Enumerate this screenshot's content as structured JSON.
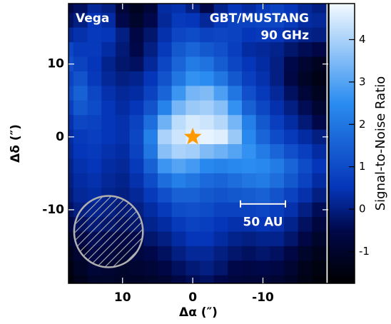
{
  "chart_data": {
    "type": "heatmap",
    "annotations": {
      "source": "Vega",
      "instrument": "GBT/MUSTANG",
      "frequency": "90 GHz"
    },
    "xlabel": "Δα (″)",
    "ylabel": "Δδ (″)",
    "colorbar_label": "Signal-to-Noise Ratio",
    "xlim": [
      17.7,
      -19.3
    ],
    "ylim": [
      -20.1,
      18.3
    ],
    "xticks": [
      10,
      0,
      -10
    ],
    "yticks": [
      10,
      0,
      -10
    ],
    "zlim": [
      -1.75,
      4.85
    ],
    "zticks": [
      -1,
      0,
      1,
      2,
      3,
      4
    ],
    "colorscale": [
      [
        -1.75,
        "#000000"
      ],
      [
        -0.5,
        "#00084a"
      ],
      [
        0.5,
        "#0535b8"
      ],
      [
        2.5,
        "#2a8cf0"
      ],
      [
        4.85,
        "#f4faff"
      ]
    ],
    "x": [
      18,
      16,
      14,
      12,
      10,
      8,
      6,
      4,
      2,
      0,
      -2,
      -4,
      -6,
      -8,
      -10,
      -12,
      -14,
      -16,
      -18
    ],
    "y": [
      18,
      16,
      14,
      12,
      10,
      8,
      6,
      4,
      2,
      0,
      -2,
      -4,
      -6,
      -8,
      -10,
      -12,
      -14,
      -16,
      -18,
      -20
    ],
    "z": [
      [
        -0.5,
        -0.3,
        0.2,
        0.0,
        -0.8,
        -1.2,
        -0.8,
        0.3,
        0.4,
        0.0,
        -0.5,
        0.1,
        0.5,
        0.3,
        0.6,
        0.8,
        0.5,
        0.2,
        0.0
      ],
      [
        -0.3,
        0.0,
        0.5,
        0.3,
        -0.5,
        -1.0,
        -0.5,
        0.2,
        0.6,
        0.5,
        0.2,
        0.6,
        0.8,
        0.8,
        0.9,
        0.9,
        0.6,
        0.3,
        0.2
      ],
      [
        0.2,
        0.4,
        0.6,
        0.5,
        0.0,
        -0.6,
        -0.2,
        0.4,
        0.9,
        1.0,
        0.8,
        0.9,
        0.8,
        0.5,
        0.6,
        0.5,
        0.3,
        0.1,
        0.0
      ],
      [
        0.9,
        0.6,
        0.6,
        0.3,
        -0.1,
        -0.5,
        0.0,
        0.6,
        1.3,
        1.6,
        1.3,
        1.1,
        0.7,
        0.3,
        0.2,
        0.1,
        -0.2,
        -0.4,
        -0.6
      ],
      [
        1.1,
        0.8,
        0.5,
        0.1,
        -0.2,
        -0.3,
        0.2,
        0.9,
        1.6,
        2.1,
        1.9,
        1.4,
        0.9,
        0.5,
        0.3,
        0.0,
        -0.5,
        -0.9,
        -1.2
      ],
      [
        0.8,
        1.2,
        0.6,
        0.2,
        0.0,
        0.1,
        0.5,
        1.2,
        2.0,
        2.6,
        2.5,
        2.0,
        1.3,
        0.7,
        0.4,
        0.0,
        -0.6,
        -1.1,
        -1.4
      ],
      [
        1.0,
        1.5,
        0.9,
        0.4,
        0.2,
        0.3,
        0.8,
        1.6,
        2.7,
        3.4,
        3.5,
        2.9,
        2.0,
        1.1,
        0.6,
        0.2,
        -0.3,
        -0.8,
        -1.2
      ],
      [
        0.7,
        1.3,
        1.0,
        0.5,
        0.3,
        0.5,
        1.2,
        2.3,
        3.4,
        3.8,
        3.9,
        3.6,
        2.6,
        1.5,
        0.9,
        0.4,
        0.0,
        -0.4,
        -0.9
      ],
      [
        0.4,
        0.9,
        0.8,
        0.5,
        0.4,
        0.8,
        1.8,
        3.3,
        4.2,
        4.5,
        4.4,
        4.1,
        3.4,
        2.2,
        1.3,
        0.7,
        0.3,
        -0.1,
        -0.5
      ],
      [
        0.3,
        0.6,
        0.7,
        0.5,
        0.4,
        0.9,
        2.2,
        4.0,
        4.4,
        4.6,
        4.7,
        4.6,
        3.8,
        2.4,
        1.6,
        1.0,
        0.6,
        0.3,
        0.0
      ],
      [
        0.2,
        0.5,
        0.6,
        0.4,
        0.3,
        0.8,
        2.0,
        3.6,
        4.0,
        3.9,
        3.5,
        3.3,
        3.0,
        2.6,
        2.1,
        1.6,
        1.1,
        0.7,
        0.3
      ],
      [
        0.1,
        0.4,
        0.5,
        0.3,
        0.2,
        0.6,
        1.5,
        2.7,
        3.0,
        2.8,
        2.4,
        2.3,
        2.4,
        2.5,
        2.4,
        2.1,
        1.6,
        1.0,
        0.5
      ],
      [
        0.0,
        0.3,
        0.4,
        0.2,
        0.1,
        0.4,
        1.0,
        1.8,
        2.2,
        2.0,
        1.7,
        1.6,
        1.8,
        2.0,
        2.1,
        1.8,
        1.3,
        0.8,
        0.3
      ],
      [
        -0.1,
        0.2,
        0.3,
        0.1,
        0.0,
        0.2,
        0.6,
        1.1,
        1.5,
        1.5,
        1.3,
        1.2,
        1.3,
        1.4,
        1.5,
        1.2,
        0.8,
        0.4,
        0.0
      ],
      [
        -0.3,
        0.0,
        0.1,
        0.0,
        -0.1,
        0.0,
        0.3,
        0.6,
        1.0,
        1.1,
        1.0,
        0.8,
        0.8,
        0.8,
        0.9,
        0.7,
        0.4,
        0.0,
        -0.4
      ],
      [
        -0.6,
        -0.3,
        -0.1,
        -0.2,
        -0.3,
        -0.2,
        0.1,
        0.3,
        0.6,
        0.8,
        0.7,
        0.5,
        0.4,
        0.4,
        0.5,
        0.4,
        0.1,
        -0.3,
        -0.7
      ],
      [
        -1.0,
        -0.6,
        -0.4,
        -0.5,
        -0.6,
        -0.5,
        -0.2,
        0.0,
        0.3,
        0.5,
        0.5,
        0.3,
        0.1,
        0.0,
        0.1,
        0.1,
        -0.2,
        -0.6,
        -1.0
      ],
      [
        -1.3,
        -0.9,
        -0.6,
        -0.7,
        -0.8,
        -0.7,
        -0.5,
        -0.3,
        0.0,
        0.2,
        0.2,
        0.0,
        -0.2,
        -0.3,
        -0.2,
        -0.3,
        -0.6,
        -1.0,
        -1.3
      ],
      [
        -1.5,
        -1.1,
        -0.8,
        -0.9,
        -1.0,
        -0.9,
        -0.8,
        -0.6,
        -0.3,
        -0.1,
        0.0,
        -0.2,
        -0.5,
        -0.6,
        -0.5,
        -0.6,
        -0.9,
        -1.3,
        -1.5
      ],
      [
        -1.6,
        -1.3,
        -1.0,
        -1.0,
        -1.1,
        -1.1,
        -1.0,
        -0.9,
        -0.6,
        -0.4,
        -0.3,
        -0.5,
        -0.7,
        -0.8,
        -0.8,
        -0.9,
        -1.1,
        -1.4,
        -1.6
      ]
    ],
    "star": {
      "x": 0,
      "y": 0,
      "color": "#ff9900"
    },
    "beam": {
      "x": 12,
      "y": -13,
      "diameter": 9.8,
      "color": "#b0b0b0"
    },
    "scalebar": {
      "x": [
        -6.8,
        -13.2
      ],
      "y": -9.2,
      "label": "50 AU"
    }
  }
}
